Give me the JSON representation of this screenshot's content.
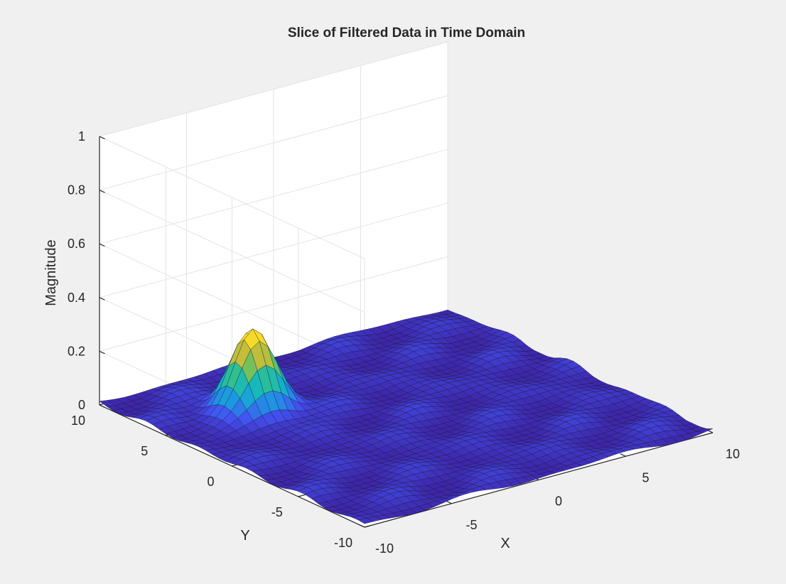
{
  "chart_data": {
    "type": "surface",
    "title": "Slice of Filtered Data in Time Domain",
    "xlabel": "X",
    "ylabel": "Y",
    "zlabel": "Magnitude",
    "xlim": [
      -10,
      10
    ],
    "ylim": [
      -10,
      10
    ],
    "zlim": [
      0,
      1
    ],
    "x_ticks": [
      "-10",
      "-5",
      "0",
      "5",
      "10"
    ],
    "y_ticks": [
      "-10",
      "-5",
      "0",
      "5",
      "10"
    ],
    "z_ticks": [
      "0",
      "0.2",
      "0.4",
      "0.6",
      "0.8",
      "1"
    ],
    "grid": true,
    "colormap": "parula",
    "colormap_stops": [
      "#3e26a8",
      "#4352f2",
      "#1f96e3",
      "#12b8c0",
      "#3dc27e",
      "#a6c03d",
      "#f4ba3b",
      "#f9fb15"
    ],
    "surface": {
      "grid_points": 41,
      "peak": {
        "x": -5,
        "y": 5,
        "z": 0.29,
        "width": 1.1
      },
      "background_level": 0.01,
      "ripple_amplitude": 0.012
    }
  }
}
